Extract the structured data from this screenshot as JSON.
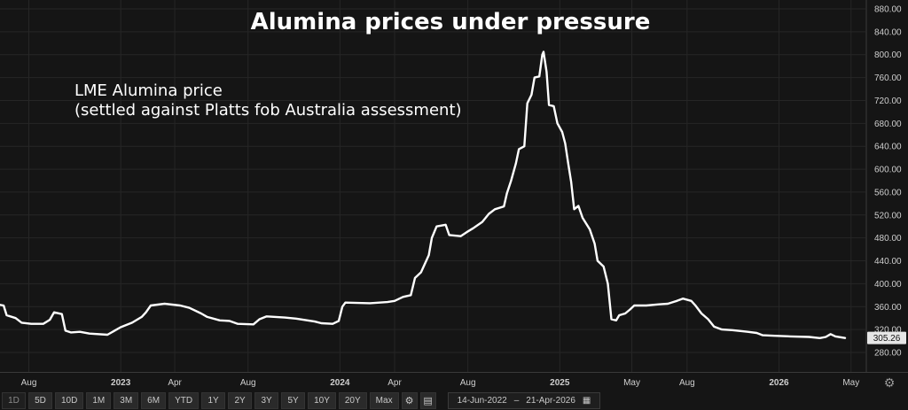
{
  "chart_data": {
    "type": "line",
    "title": "Alumina prices under pressure",
    "annotation": [
      "LME Alumina price",
      "(settled against Platts fob Australia assessment)"
    ],
    "ylim": [
      255,
      900
    ],
    "y_ticks": [
      "280.00",
      "320.00",
      "360.00",
      "400.00",
      "440.00",
      "480.00",
      "520.00",
      "560.00",
      "600.00",
      "640.00",
      "680.00",
      "720.00",
      "760.00",
      "800.00",
      "840.00",
      "880.00"
    ],
    "x_ticks": [
      {
        "date": "2022-08-01",
        "label": "Aug",
        "bold": false
      },
      {
        "date": "2023-01-01",
        "label": "2023",
        "bold": true
      },
      {
        "date": "2023-04-01",
        "label": "Apr",
        "bold": false
      },
      {
        "date": "2023-08-01",
        "label": "Aug",
        "bold": false
      },
      {
        "date": "2024-01-01",
        "label": "2024",
        "bold": true
      },
      {
        "date": "2024-04-01",
        "label": "Apr",
        "bold": false
      },
      {
        "date": "2024-08-01",
        "label": "Aug",
        "bold": false
      },
      {
        "date": "2025-01-01",
        "label": "2025",
        "bold": true
      },
      {
        "date": "2025-05-01",
        "label": "May",
        "bold": false
      },
      {
        "date": "2025-08-01",
        "label": "Aug",
        "bold": false
      },
      {
        "date": "2026-01-01",
        "label": "2026",
        "bold": true
      },
      {
        "date": "2026-05-01",
        "label": "May",
        "bold": false
      }
    ],
    "last_value": "305.26",
    "grid": true,
    "series": [
      {
        "color": "#ffffff",
        "points": [
          [
            "2022-06-14",
            363
          ],
          [
            "2022-06-20",
            362
          ],
          [
            "2022-06-25",
            345
          ],
          [
            "2022-07-10",
            340
          ],
          [
            "2022-07-20",
            332
          ],
          [
            "2022-08-05",
            330
          ],
          [
            "2022-08-25",
            330
          ],
          [
            "2022-09-05",
            337
          ],
          [
            "2022-09-12",
            350
          ],
          [
            "2022-09-25",
            347
          ],
          [
            "2022-10-01",
            318
          ],
          [
            "2022-10-10",
            315
          ],
          [
            "2022-10-25",
            316
          ],
          [
            "2022-11-10",
            313
          ],
          [
            "2022-12-10",
            311
          ],
          [
            "2023-01-01",
            324
          ],
          [
            "2023-01-20",
            332
          ],
          [
            "2023-02-05",
            342
          ],
          [
            "2023-02-12",
            350
          ],
          [
            "2023-02-20",
            362
          ],
          [
            "2023-03-15",
            365
          ],
          [
            "2023-04-10",
            362
          ],
          [
            "2023-04-25",
            358
          ],
          [
            "2023-05-15",
            348
          ],
          [
            "2023-05-25",
            342
          ],
          [
            "2023-06-15",
            336
          ],
          [
            "2023-07-01",
            335
          ],
          [
            "2023-07-15",
            330
          ],
          [
            "2023-08-10",
            329
          ],
          [
            "2023-08-20",
            338
          ],
          [
            "2023-09-01",
            343
          ],
          [
            "2023-10-01",
            341
          ],
          [
            "2023-10-20",
            339
          ],
          [
            "2023-11-20",
            334
          ],
          [
            "2023-12-01",
            331
          ],
          [
            "2023-12-20",
            330
          ],
          [
            "2023-12-30",
            335
          ],
          [
            "2024-01-05",
            360
          ],
          [
            "2024-01-10",
            367
          ],
          [
            "2024-02-20",
            366
          ],
          [
            "2024-03-20",
            368
          ],
          [
            "2024-04-01",
            370
          ],
          [
            "2024-04-15",
            377
          ],
          [
            "2024-04-28",
            380
          ],
          [
            "2024-05-05",
            410
          ],
          [
            "2024-05-15",
            420
          ],
          [
            "2024-05-28",
            450
          ],
          [
            "2024-06-02",
            480
          ],
          [
            "2024-06-10",
            500
          ],
          [
            "2024-06-25",
            503
          ],
          [
            "2024-07-01",
            485
          ],
          [
            "2024-07-20",
            483
          ],
          [
            "2024-07-30",
            490
          ],
          [
            "2024-08-10",
            497
          ],
          [
            "2024-08-25",
            508
          ],
          [
            "2024-09-05",
            522
          ],
          [
            "2024-09-15",
            530
          ],
          [
            "2024-09-30",
            535
          ],
          [
            "2024-10-05",
            558
          ],
          [
            "2024-10-12",
            580
          ],
          [
            "2024-10-20",
            610
          ],
          [
            "2024-10-25",
            635
          ],
          [
            "2024-11-03",
            640
          ],
          [
            "2024-11-08",
            715
          ],
          [
            "2024-11-15",
            730
          ],
          [
            "2024-11-20",
            760
          ],
          [
            "2024-11-28",
            762
          ],
          [
            "2024-12-03",
            800
          ],
          [
            "2024-12-05",
            805
          ],
          [
            "2024-12-10",
            770
          ],
          [
            "2024-12-14",
            712
          ],
          [
            "2024-12-22",
            710
          ],
          [
            "2024-12-28",
            680
          ],
          [
            "2025-01-05",
            665
          ],
          [
            "2025-01-10",
            645
          ],
          [
            "2025-01-15",
            610
          ],
          [
            "2025-01-20",
            578
          ],
          [
            "2025-01-25",
            530
          ],
          [
            "2025-02-01",
            536
          ],
          [
            "2025-02-08",
            515
          ],
          [
            "2025-02-20",
            495
          ],
          [
            "2025-02-28",
            470
          ],
          [
            "2025-03-05",
            440
          ],
          [
            "2025-03-15",
            430
          ],
          [
            "2025-03-22",
            400
          ],
          [
            "2025-03-28",
            338
          ],
          [
            "2025-04-05",
            336
          ],
          [
            "2025-04-10",
            345
          ],
          [
            "2025-04-20",
            348
          ],
          [
            "2025-04-28",
            355
          ],
          [
            "2025-05-05",
            362
          ],
          [
            "2025-05-25",
            362
          ],
          [
            "2025-06-15",
            364
          ],
          [
            "2025-06-30",
            365
          ],
          [
            "2025-07-15",
            370
          ],
          [
            "2025-07-25",
            374
          ],
          [
            "2025-08-08",
            370
          ],
          [
            "2025-08-15",
            362
          ],
          [
            "2025-08-25",
            348
          ],
          [
            "2025-09-05",
            338
          ],
          [
            "2025-09-15",
            325
          ],
          [
            "2025-09-28",
            320
          ],
          [
            "2025-10-15",
            319
          ],
          [
            "2025-11-10",
            316
          ],
          [
            "2025-11-25",
            314
          ],
          [
            "2025-12-05",
            310
          ],
          [
            "2025-12-25",
            309
          ],
          [
            "2026-01-20",
            308
          ],
          [
            "2026-02-20",
            307
          ],
          [
            "2026-03-10",
            305
          ],
          [
            "2026-03-20",
            307
          ],
          [
            "2026-03-28",
            312
          ],
          [
            "2026-04-05",
            308
          ],
          [
            "2026-04-21",
            305.26
          ]
        ]
      }
    ]
  },
  "toolbar": {
    "ranges": [
      "1D",
      "5D",
      "10D",
      "1M",
      "3M",
      "6M",
      "YTD",
      "1Y",
      "2Y",
      "3Y",
      "5Y",
      "10Y",
      "20Y",
      "Max"
    ],
    "date_start": "14-Jun-2022",
    "date_sep": "–",
    "date_end": "21-Apr-2026",
    "icons": [
      "gear-icon",
      "table-icon",
      "calendar-icon"
    ]
  },
  "colors": {
    "background": "#151515",
    "grid": "#262626",
    "line": "#ffffff",
    "axis_text": "#cfcfcf",
    "last_badge": "#e6e6e6"
  }
}
